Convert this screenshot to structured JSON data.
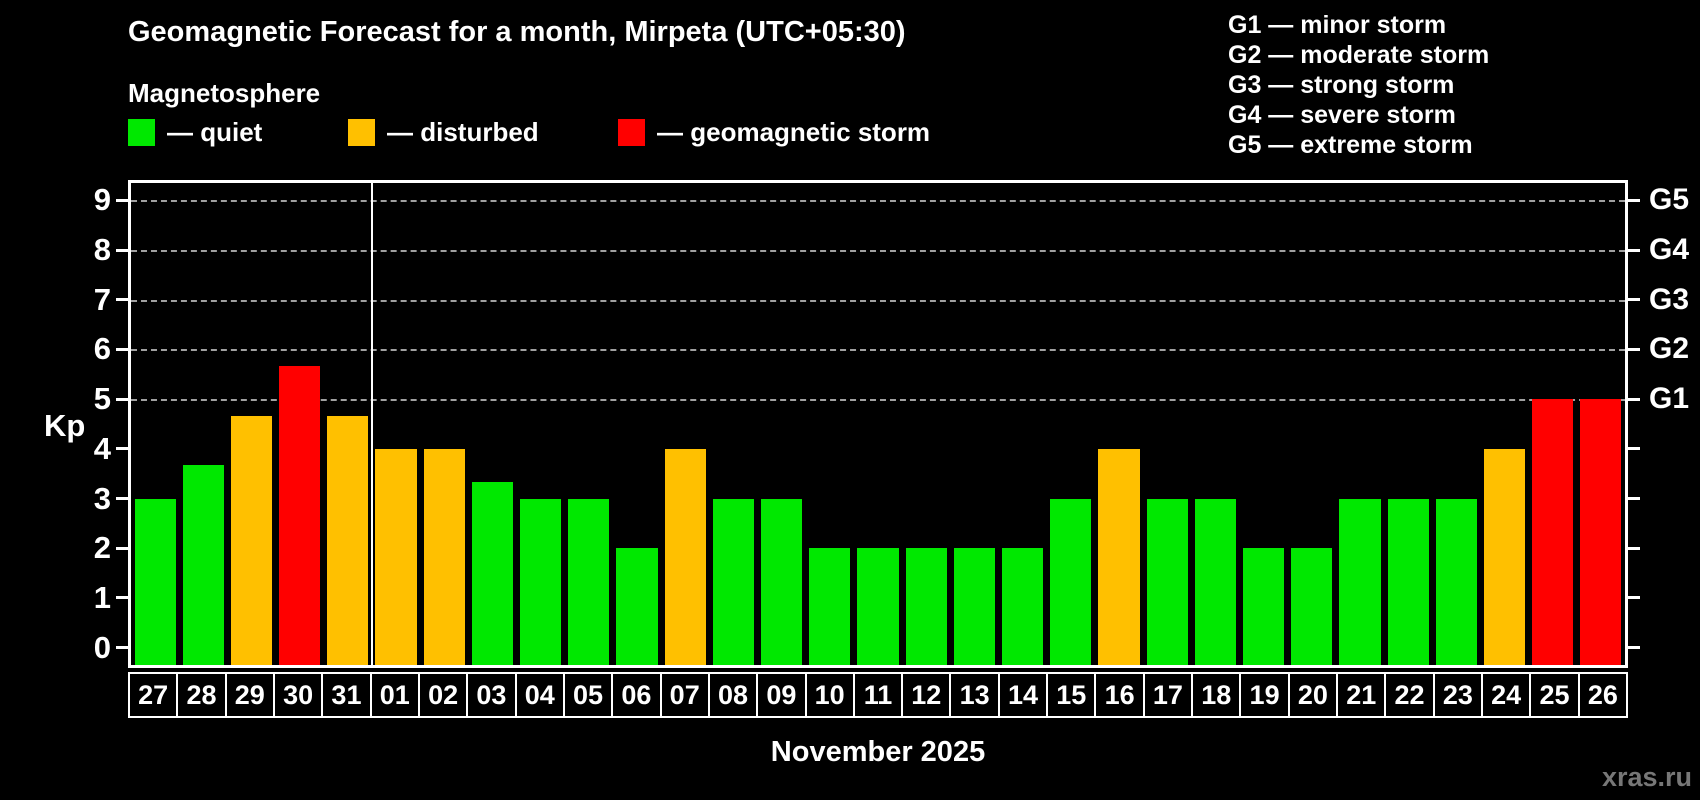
{
  "header": {
    "title": "Geomagnetic Forecast for a month, Mirpeta (UTC+05:30)",
    "subtitle": "Magnetosphere"
  },
  "legend": {
    "items": [
      {
        "key": "quiet",
        "label": "— quiet",
        "color": "#00e800"
      },
      {
        "key": "disturbed",
        "label": "— disturbed",
        "color": "#ffc000"
      },
      {
        "key": "storm",
        "label": "— geomagnetic storm",
        "color": "#ff0000"
      }
    ]
  },
  "storm_scale": {
    "lines": [
      "G1 — minor storm",
      "G2 — moderate storm",
      "G3 — strong storm",
      "G4 — severe storm",
      "G5 — extreme storm"
    ]
  },
  "chart_data": {
    "type": "bar",
    "title": "Geomagnetic Forecast for a month, Mirpeta (UTC+05:30)",
    "ylabel": "Kp",
    "xlabel": "November 2025",
    "ylim": [
      0,
      9
    ],
    "yticks": [
      0,
      1,
      2,
      3,
      4,
      5,
      6,
      7,
      8,
      9
    ],
    "gridlines_at": [
      5,
      6,
      7,
      8,
      9
    ],
    "right_axis_labels": [
      {
        "kp": 5,
        "label": "G1"
      },
      {
        "kp": 6,
        "label": "G2"
      },
      {
        "kp": 7,
        "label": "G3"
      },
      {
        "kp": 8,
        "label": "G4"
      },
      {
        "kp": 9,
        "label": "G5"
      }
    ],
    "categories": [
      "27",
      "28",
      "29",
      "30",
      "31",
      "01",
      "02",
      "03",
      "04",
      "05",
      "06",
      "07",
      "08",
      "09",
      "10",
      "11",
      "12",
      "13",
      "14",
      "15",
      "16",
      "17",
      "18",
      "19",
      "20",
      "21",
      "22",
      "23",
      "24",
      "25",
      "26"
    ],
    "values": [
      3,
      3.67,
      4.67,
      5.67,
      4.67,
      4,
      4,
      3.33,
      3,
      3,
      2,
      4,
      3,
      3,
      2,
      2,
      2,
      2,
      2,
      3,
      4,
      3,
      3,
      2,
      2,
      3,
      3,
      3,
      4,
      5,
      5
    ],
    "levels": [
      "quiet",
      "quiet",
      "disturbed",
      "storm",
      "disturbed",
      "disturbed",
      "disturbed",
      "quiet",
      "quiet",
      "quiet",
      "quiet",
      "disturbed",
      "quiet",
      "quiet",
      "quiet",
      "quiet",
      "quiet",
      "quiet",
      "quiet",
      "quiet",
      "disturbed",
      "quiet",
      "quiet",
      "quiet",
      "quiet",
      "quiet",
      "quiet",
      "quiet",
      "disturbed",
      "storm",
      "storm"
    ],
    "month_separator_after_index": 4,
    "legend_position": "top"
  },
  "footer": {
    "xlabel": "November 2025",
    "watermark": "xras.ru"
  },
  "colors": {
    "quiet": "#00e800",
    "disturbed": "#ffc000",
    "storm": "#ff0000",
    "grid": "#a0a0a0",
    "axis": "#ffffff",
    "background": "#000000",
    "watermark": "#777777"
  }
}
